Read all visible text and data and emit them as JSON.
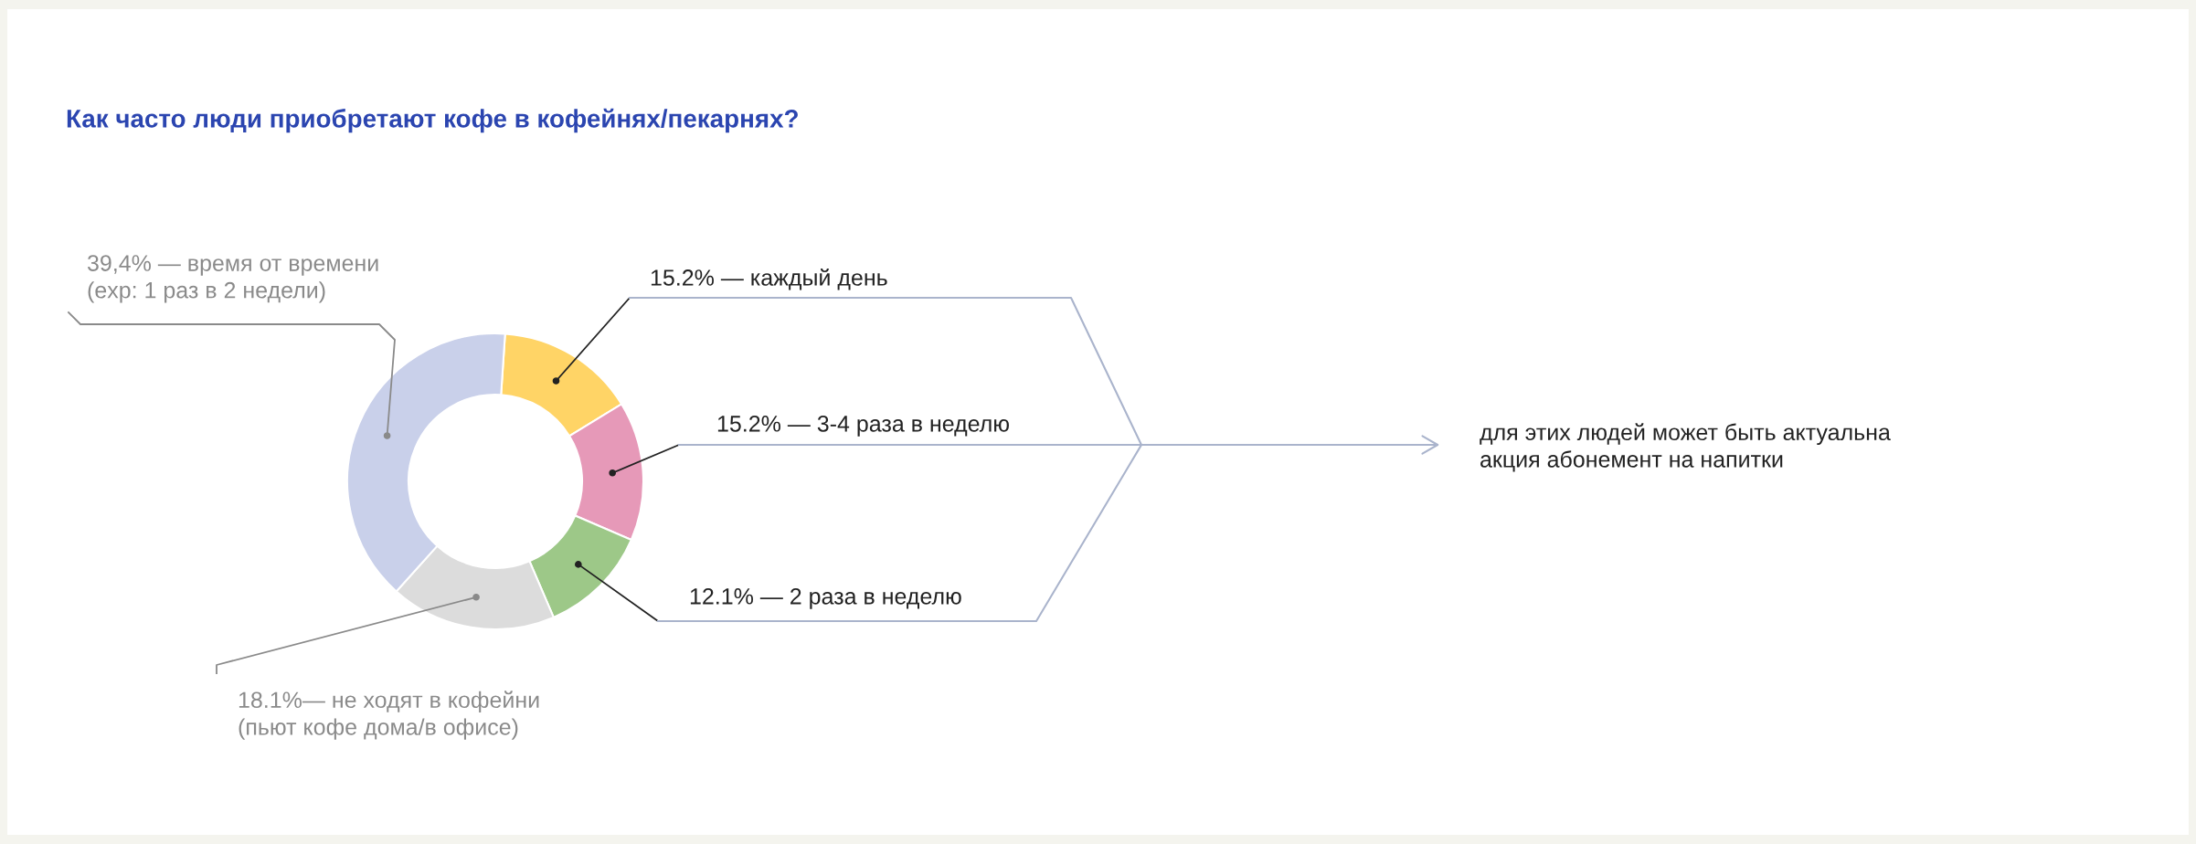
{
  "chart_data": {
    "type": "donut",
    "title": "Как часто люди приобретают кофе в кофейнях/пекарнях?",
    "categories": [
      "15.2% — каждый день",
      "15.2% — 3-4 раза в неделю",
      "12.1% — 2 раза в неделю",
      "18.1%— не ходят в кофейни\n(пьют кофе дома/в офисе)",
      "39,4% — время от времени\n(exp: 1 раз в 2 недели)"
    ],
    "values": [
      15.2,
      15.2,
      12.1,
      18.1,
      39.4
    ],
    "colors": [
      "#ffd466",
      "#e699b8",
      "#9dc888",
      "#dcdcdc",
      "#c9d0ea"
    ],
    "annotations": [
      "для этих людей может быть актуальна\nакция абонемент на напитки"
    ],
    "legend": false
  }
}
